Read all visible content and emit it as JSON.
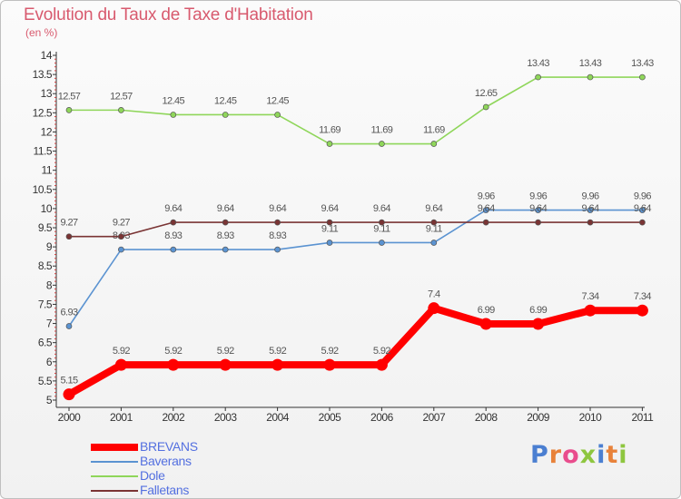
{
  "title": "Evolution du Taux de Taxe d'Habitation",
  "subtitle": "(en %)",
  "logo": {
    "text": "Proxiti",
    "letter_colors": [
      "#4b7fd1",
      "#e8823a",
      "#e94d8d",
      "#8ec63f",
      "#4b7fd1",
      "#e8823a",
      "#8ec63f"
    ]
  },
  "chart_data": {
    "type": "line",
    "x": [
      "2000",
      "2001",
      "2002",
      "2003",
      "2004",
      "2005",
      "2006",
      "2007",
      "2008",
      "2009",
      "2010",
      "2011"
    ],
    "ylim": [
      5,
      14
    ],
    "ytick_step": 0.5,
    "yticks": [
      "5",
      "5.5",
      "6",
      "6.5",
      "7",
      "7.5",
      "8",
      "8.5",
      "9",
      "9.5",
      "10",
      "10.5",
      "11",
      "11.5",
      "12",
      "12.5",
      "13",
      "13.5",
      "14"
    ],
    "grid": false,
    "legend_position": "bottom-left",
    "series": [
      {
        "name": "BREVANS",
        "color": "#ff0000",
        "emphasis": true,
        "values": [
          5.15,
          5.92,
          5.92,
          5.92,
          5.92,
          5.92,
          5.92,
          7.4,
          6.99,
          6.99,
          7.34,
          7.34
        ],
        "labels": [
          "5.15",
          "5.92",
          "5.92",
          "5.92",
          "5.92",
          "5.92",
          "5.92",
          "7.4",
          "6.99",
          "6.99",
          "7.34",
          "7.34"
        ]
      },
      {
        "name": "Baverans",
        "color": "#5b93d1",
        "emphasis": false,
        "values": [
          6.93,
          8.93,
          8.93,
          8.93,
          8.93,
          9.11,
          9.11,
          9.11,
          9.96,
          9.96,
          9.96,
          9.96
        ],
        "labels": [
          "6.93",
          "8.93",
          "8.93",
          "8.93",
          "8.93",
          "9.11",
          "9.11",
          "9.11",
          "9.96",
          "9.96",
          "9.96",
          "9.96"
        ]
      },
      {
        "name": "Dole",
        "color": "#8fd65a",
        "emphasis": false,
        "values": [
          12.57,
          12.57,
          12.45,
          12.45,
          12.45,
          11.69,
          11.69,
          11.69,
          12.65,
          13.43,
          13.43,
          13.43
        ],
        "labels": [
          "12.57",
          "12.57",
          "12.45",
          "12.45",
          "12.45",
          "11.69",
          "11.69",
          "11.69",
          "12.65",
          "13.43",
          "13.43",
          "13.43"
        ]
      },
      {
        "name": "Falletans",
        "color": "#7a3434",
        "emphasis": false,
        "values": [
          9.27,
          9.27,
          9.64,
          9.64,
          9.64,
          9.64,
          9.64,
          9.64,
          9.64,
          9.64,
          9.64,
          9.64
        ],
        "labels": [
          "9.27",
          "9.27",
          "9.64",
          "9.64",
          "9.64",
          "9.64",
          "9.64",
          "9.64",
          "9.64",
          "9.64",
          "9.64",
          "9.64"
        ]
      }
    ]
  }
}
